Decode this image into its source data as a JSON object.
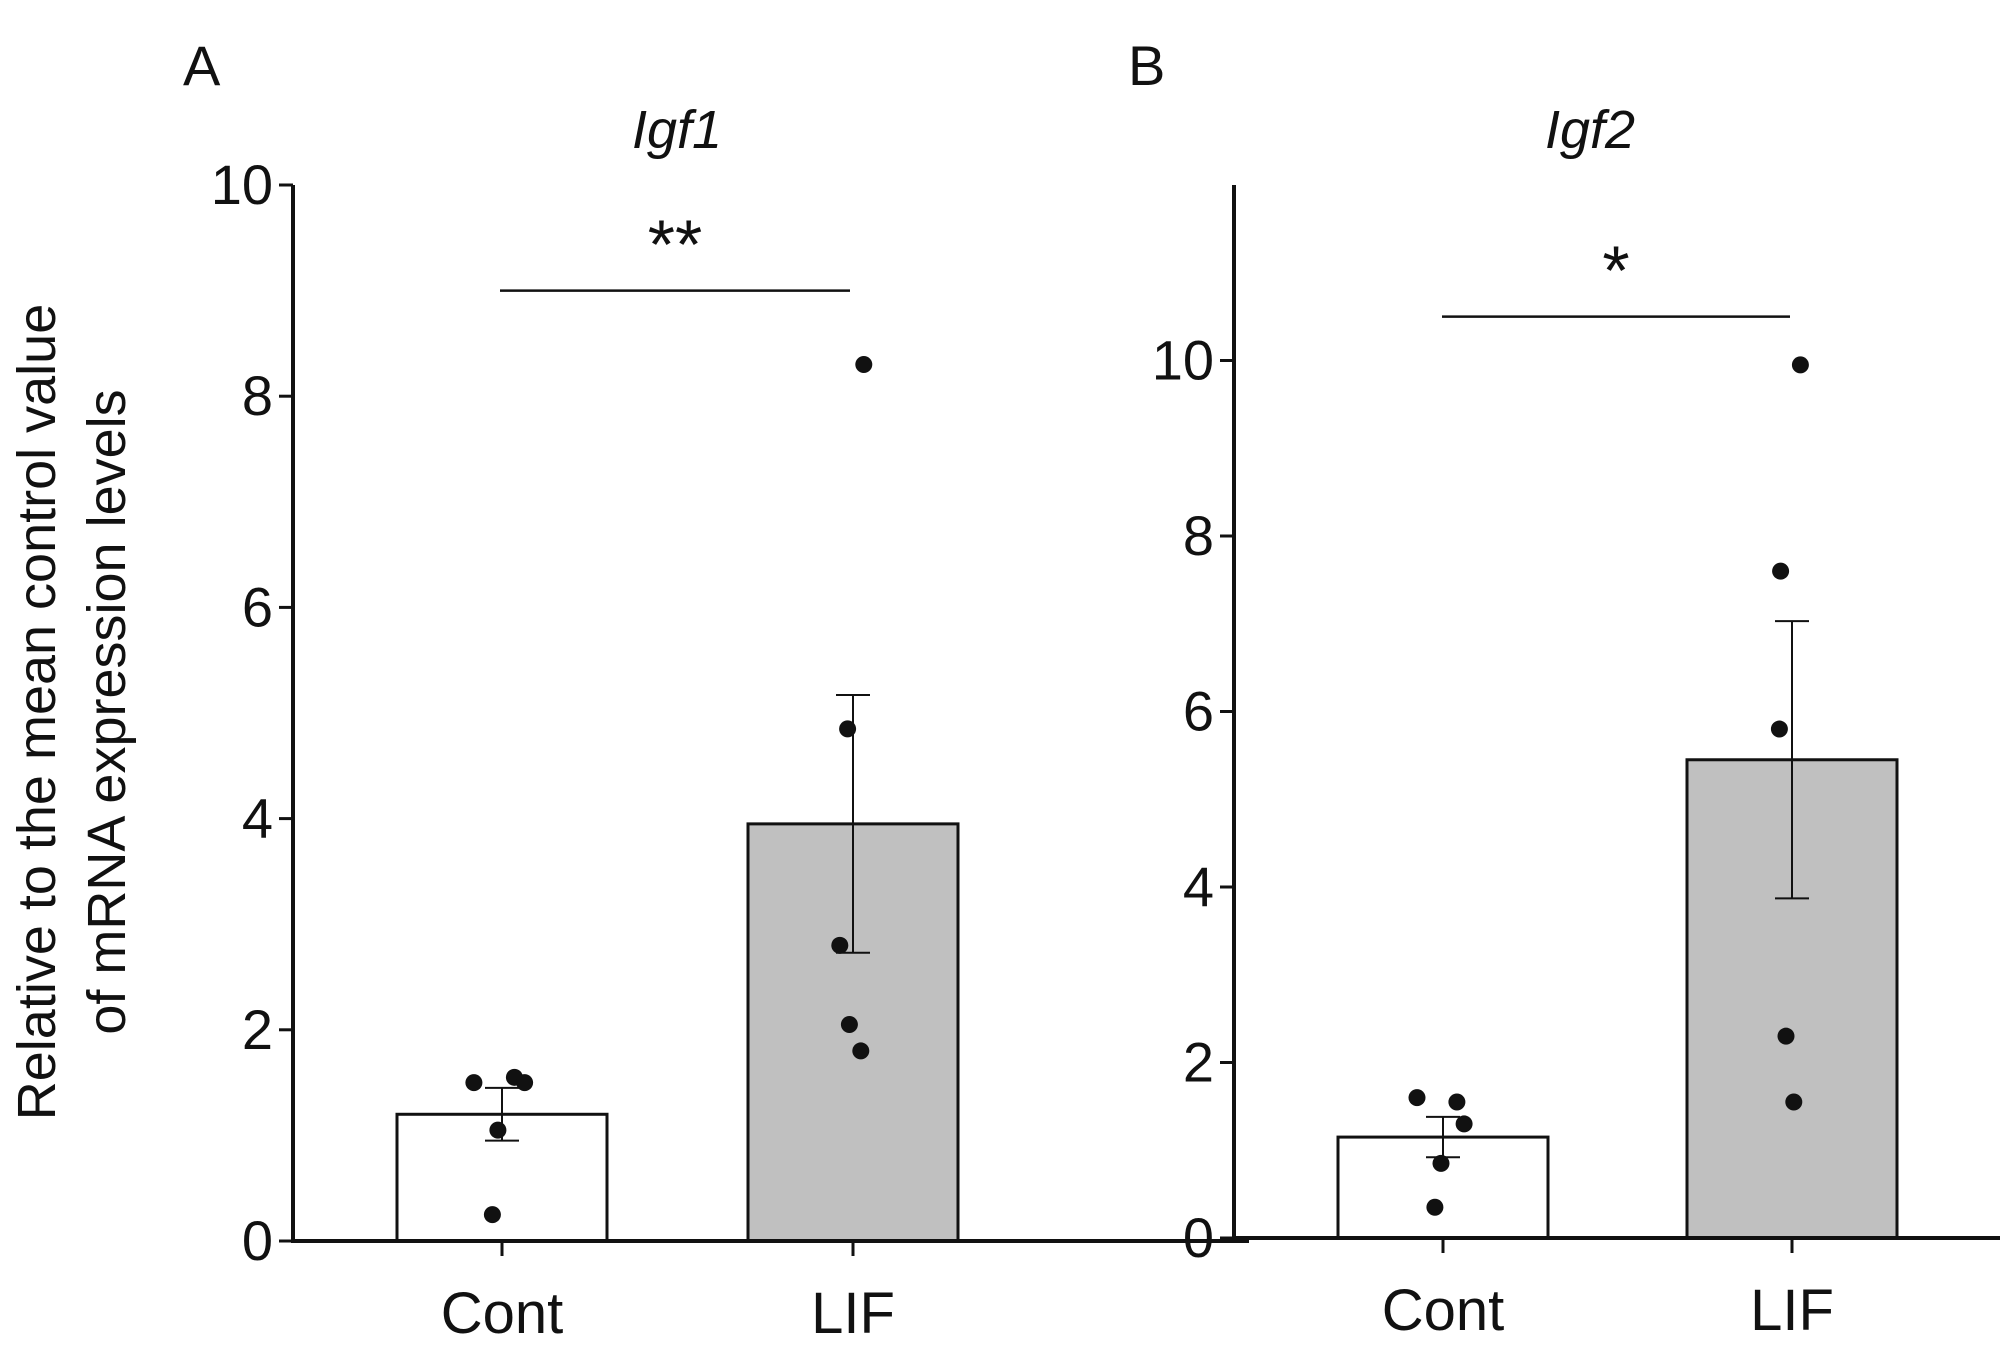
{
  "y_axis_label_lines": [
    "Relative to the mean control value",
    "of mRNA expression levels"
  ],
  "chart_data": [
    {
      "type": "bar",
      "panel_letter": "A",
      "title": "Igf1",
      "categories": [
        "Cont",
        "LIF"
      ],
      "values": [
        1.2,
        3.95
      ],
      "error": [
        0.25,
        1.22
      ],
      "points": [
        [
          1.5,
          1.55,
          1.5,
          1.05,
          0.25
        ],
        [
          8.3,
          4.85,
          2.8,
          2.05,
          1.8
        ]
      ],
      "ylim": [
        0,
        10
      ],
      "yticks": [
        0,
        2,
        4,
        6,
        8,
        10
      ],
      "ytick_labels": [
        "0",
        "2",
        "4",
        "6",
        "8",
        "10"
      ],
      "significance": {
        "label": "**",
        "y": 9.0
      },
      "colors": [
        "#ffffff",
        "#c0c0c0"
      ],
      "xlabel": "",
      "ylabel": "Relative to the mean control value of mRNA expression levels"
    },
    {
      "type": "bar",
      "panel_letter": "B",
      "title": "Igf2",
      "categories": [
        "Cont",
        "LIF"
      ],
      "values": [
        1.15,
        5.45
      ],
      "error": [
        0.23,
        1.58
      ],
      "points": [
        [
          1.6,
          1.55,
          1.3,
          0.85,
          0.35
        ],
        [
          9.95,
          7.6,
          5.8,
          2.3,
          1.55
        ]
      ],
      "ylim": [
        0,
        12
      ],
      "yticks": [
        0,
        2,
        4,
        6,
        8,
        10
      ],
      "ytick_labels": [
        "0",
        "2",
        "4",
        "6",
        "8",
        "10"
      ],
      "significance": {
        "label": "*",
        "y": 10.5
      },
      "colors": [
        "#ffffff",
        "#c0c0c0"
      ],
      "xlabel": "",
      "ylabel": ""
    }
  ]
}
